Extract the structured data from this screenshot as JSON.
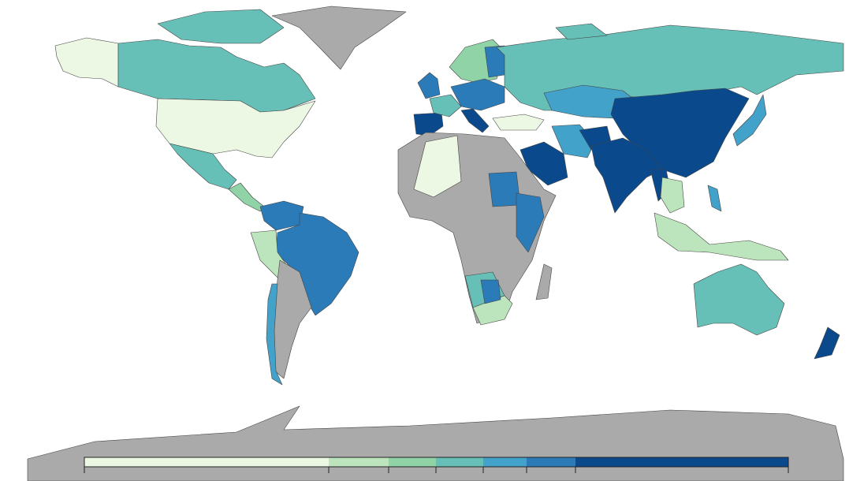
{
  "legend": {
    "colors": [
      "#edf8e4",
      "#bde5bd",
      "#8fd3a6",
      "#67c0b8",
      "#43a2ca",
      "#2b7bb8",
      "#0a4a8c"
    ],
    "no_data_color": "#aaaaaa"
  }
}
